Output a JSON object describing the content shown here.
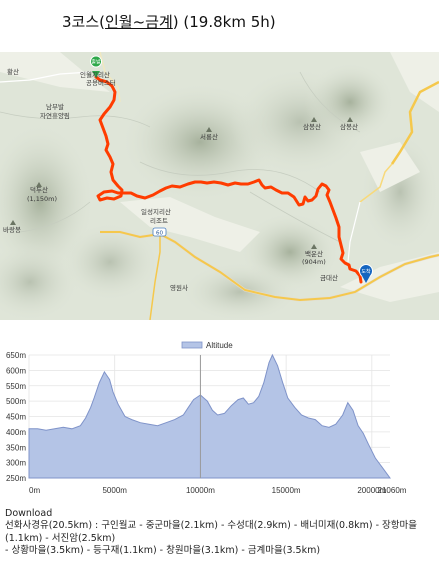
{
  "title": {
    "prefix": "3코스(",
    "underlined": "인월~금계",
    "suffix": ") (19.8km 5h)"
  },
  "map": {
    "markers": {
      "start": "출발",
      "end": "도착"
    },
    "labels": {
      "hwangsan": "황산",
      "inwol_line1": "인월지리산",
      "inwol_line2": "공용버스터",
      "nambu1": "남부발",
      "nambu2": "자연휴양림",
      "seonghwa1": "덕두산",
      "seonghwa2": "(1,150m)",
      "seoraebong": "바랑봉",
      "seobongsan": "서룡산",
      "sambongsan": "삼봉산",
      "sambongsan2": "삼봉산",
      "ilseong1": "일성지리산",
      "ilseong2": "리조트",
      "road60": "60",
      "baegunsan1": "백운산",
      "baegunsan2": "(904m)",
      "geumdaesan": "금대산",
      "yeongwonsa": "영원사"
    },
    "colors": {
      "route": "#ff3c00",
      "start": "#2ea84a",
      "end": "#1565c0",
      "road": "#f5c84c"
    }
  },
  "chart_data": {
    "type": "area",
    "legend": "Altitude",
    "legend_position": "top-center",
    "xlim": [
      0,
      21060
    ],
    "ylim": [
      250,
      650
    ],
    "x_ticks": [
      0,
      5000,
      10000,
      15000,
      20000
    ],
    "x_tick_labels": [
      "0m",
      "5000m",
      "10000m",
      "15000m",
      "20000m"
    ],
    "x_end_label": "21060m",
    "y_ticks": [
      250,
      300,
      350,
      400,
      450,
      500,
      550,
      600,
      650
    ],
    "y_tick_labels": [
      "250m",
      "300m",
      "350m",
      "400m",
      "450m",
      "500m",
      "550m",
      "600m",
      "650m"
    ],
    "grid": true,
    "x": [
      0,
      500,
      1000,
      1500,
      2000,
      2500,
      3000,
      3300,
      3600,
      3800,
      4100,
      4400,
      4700,
      4900,
      5200,
      5600,
      6000,
      6500,
      7000,
      7500,
      8000,
      8500,
      9000,
      9300,
      9600,
      10000,
      10400,
      10700,
      11000,
      11400,
      11800,
      12200,
      12500,
      12800,
      13100,
      13400,
      13700,
      14000,
      14200,
      14500,
      14800,
      15100,
      15500,
      15900,
      16300,
      16700,
      17100,
      17500,
      17900,
      18300,
      18600,
      18900,
      19200,
      19500,
      19800,
      20200,
      20600,
      21060
    ],
    "y": [
      410,
      410,
      405,
      410,
      415,
      410,
      420,
      445,
      480,
      510,
      560,
      595,
      570,
      530,
      490,
      450,
      440,
      430,
      425,
      420,
      430,
      440,
      455,
      480,
      505,
      520,
      500,
      470,
      455,
      460,
      485,
      505,
      510,
      490,
      495,
      515,
      560,
      625,
      650,
      615,
      560,
      510,
      480,
      455,
      445,
      440,
      420,
      415,
      425,
      455,
      495,
      470,
      420,
      395,
      360,
      315,
      285,
      250
    ],
    "marker_x": 10000,
    "colors": {
      "fill": "#b4c4e6",
      "line": "#7f93c9",
      "marker": "#999999"
    }
  },
  "download": {
    "label": "Download",
    "line1": "선화사경유(20.5km) : 구인월교 - 중군마을(2.1km) - 수성대(2.9km) - 배너미재(0.8km) - 장항마을(1.1km) - 서진암(2.5km)",
    "line2": "- 상황마을(3.5km) - 등구재(1.1km) - 창원마을(3.1km) - 금계마을(3.5km)"
  }
}
